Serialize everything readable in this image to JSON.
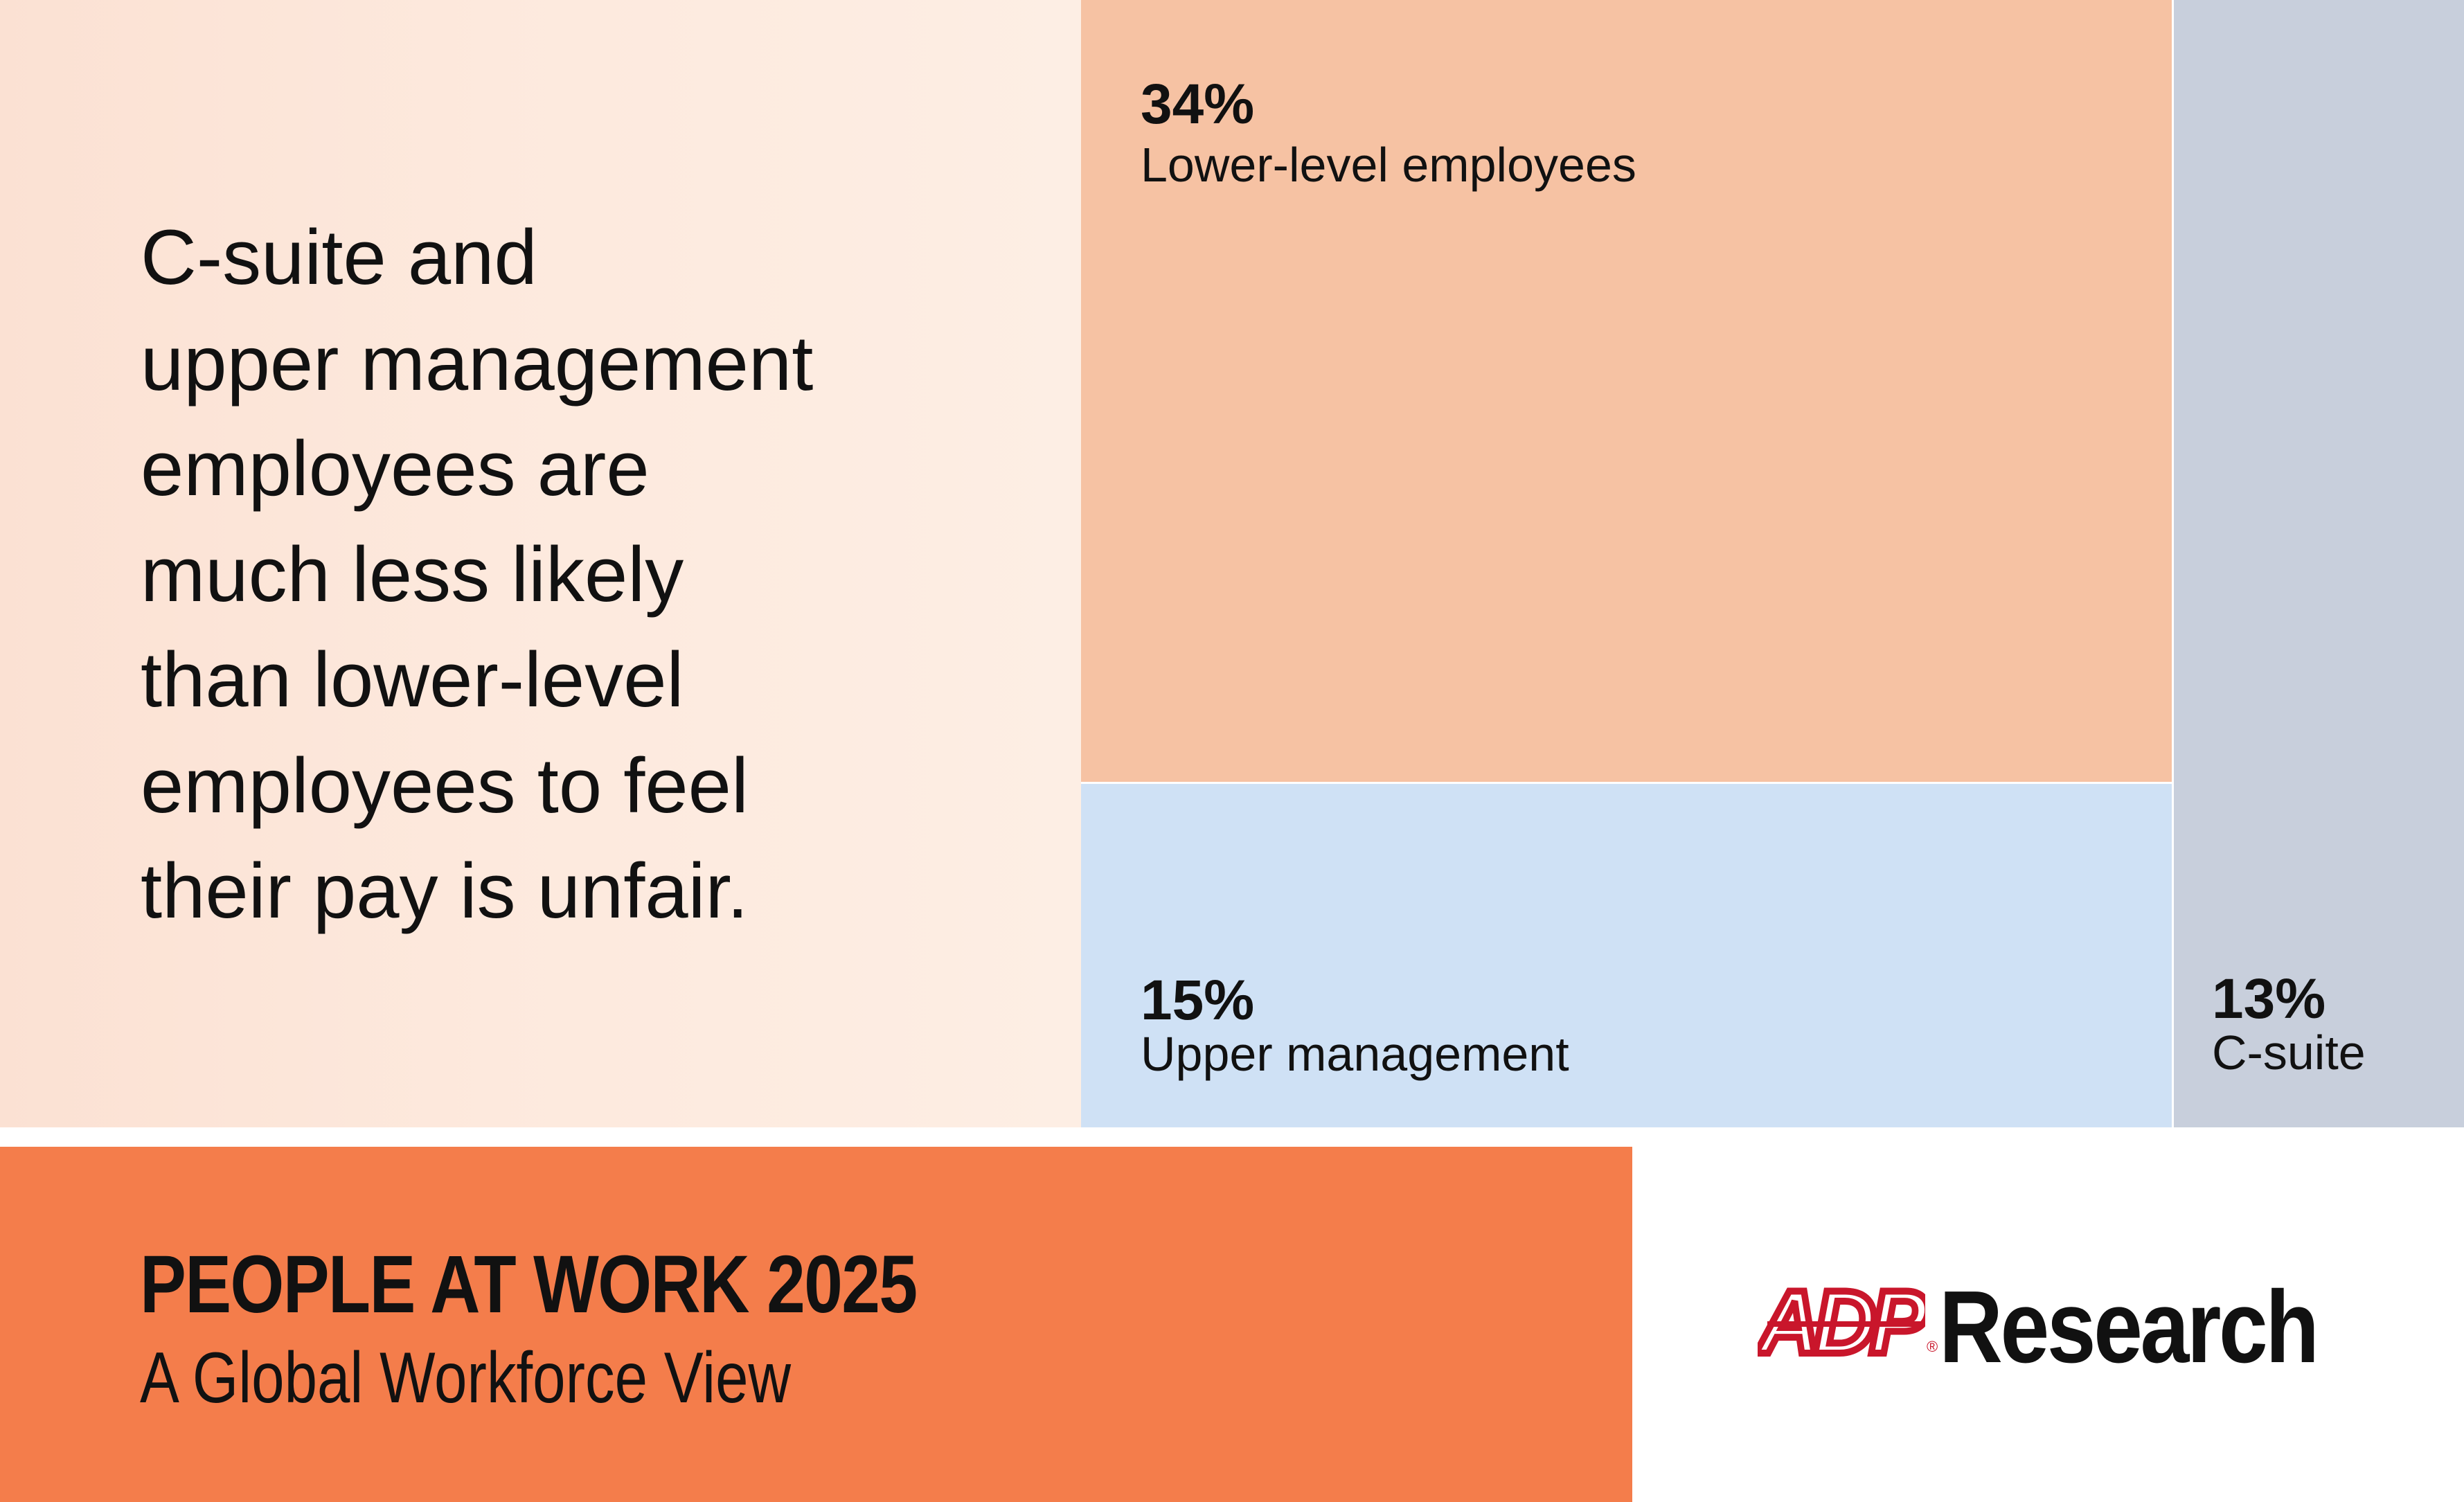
{
  "headline": "C-suite and\nupper management\nemployees are\nmuch less likely\nthan lower-level\nemployees to feel\ntheir pay is unfair.",
  "chart_data": {
    "type": "treemap",
    "title": "",
    "items": [
      {
        "name": "Lower-level employees",
        "value": 34,
        "value_label": "34%",
        "color": "#f6c2a3"
      },
      {
        "name": "Upper management",
        "value": 15,
        "value_label": "15%",
        "color": "#cfe1f5"
      },
      {
        "name": "C-suite",
        "value": 13,
        "value_label": "13%",
        "color": "#c8cfdc"
      }
    ]
  },
  "footer": {
    "title": "PEOPLE AT WORK 2025",
    "subtitle": "A Global Workforce View",
    "band_color": "#f47d4b"
  },
  "logo": {
    "mark_text": "ADP",
    "registered": "®",
    "text": "Research",
    "mark_color": "#c9162b"
  }
}
